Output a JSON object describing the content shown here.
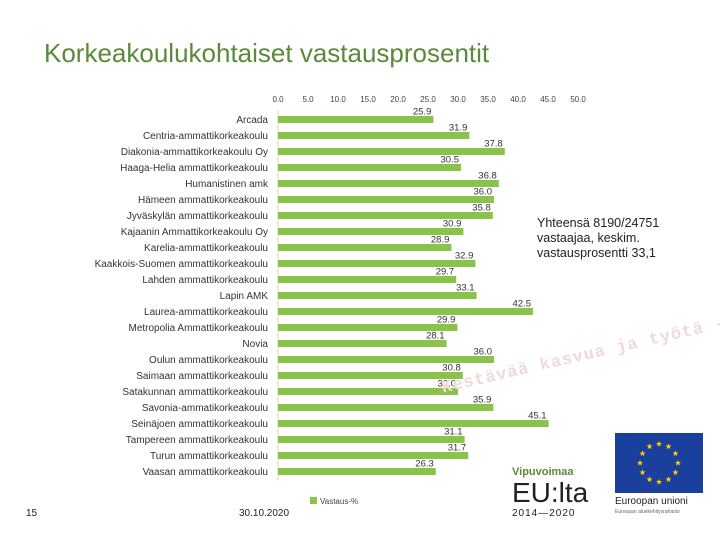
{
  "slide": {
    "title": "Korkeakoulukohtaiset vastausprosentit",
    "note": "Yhteensä 8190/24751 vastaajaa, keskim. vastausprosentti 33,1",
    "page_number": "15",
    "date": "30.10.2020",
    "watermark": "Kestävää kasvua ja työtä -ohjelma",
    "logo_top": "Vipuvoimaa",
    "logo_main": "EU:lta",
    "logo_years": "2014—2020",
    "eu_label": "Euroopan unioni",
    "eu_sublabel": "Euroopan aluekehitysrahasto",
    "colors": {
      "bar": "#8bc34a",
      "title": "#5a8a3a",
      "eu_blue": "#1b3f9c",
      "eu_star": "#ffd200"
    }
  },
  "chart_data": {
    "type": "bar",
    "orientation": "horizontal",
    "categories": [
      "Arcada",
      "Centria-ammattikorkeakoulu",
      "Diakonia-ammattikorkeakoulu Oy",
      "Haaga-Helia ammattikorkeakoulu",
      "Humanistinen amk",
      "Hämeen ammattikorkeakoulu",
      "Jyväskylän ammattikorkeakoulu",
      "Kajaanin Ammattikorkeakoulu Oy",
      "Karelia-ammattikorkeakoulu",
      "Kaakkois-Suomen ammattikorkeakoulu",
      "Lahden ammattikorkeakoulu",
      "Lapin AMK",
      "Laurea-ammattikorkeakoulu",
      "Metropolia Ammattikorkeakoulu",
      "Novia",
      "Oulun ammattikorkeakoulu",
      "Saimaan ammattikorkeakoulu",
      "Satakunnan ammattikorkeakoulu",
      "Savonia-ammatikorkeakoulu",
      "Seinäjoen ammattikorkeakoulu",
      "Tampereen ammattikorkeakoulu",
      "Turun ammattikorkeakoulu",
      "Vaasan ammattikorkeakoulu"
    ],
    "series": [
      {
        "name": "Vastaus-%",
        "values": [
          25.9,
          31.9,
          37.8,
          30.5,
          36.8,
          36.0,
          35.8,
          30.9,
          28.9,
          32.9,
          29.7,
          33.1,
          42.5,
          29.9,
          28.1,
          36.0,
          30.8,
          30.0,
          35.9,
          45.1,
          31.1,
          31.7,
          26.3
        ],
        "labels": [
          "25.9",
          "31.9",
          "37.8",
          "30.5",
          "36.8",
          "36.0",
          "35.8",
          "30.9",
          "28.9",
          "32.9",
          "29.7",
          "33.1",
          "42.5",
          "29.9",
          "28.1",
          "36.0",
          "30.8",
          "30.0",
          "35.9",
          "45.1",
          "31.1",
          "31.7",
          "26.3"
        ]
      }
    ],
    "xlim": [
      0,
      50
    ],
    "x_ticks": [
      0,
      5,
      10,
      15,
      20,
      25,
      30,
      35,
      40,
      45,
      50
    ],
    "x_tick_labels": [
      "0.0",
      "5.0",
      "10.0",
      "15.0",
      "20.0",
      "25.0",
      "30.0",
      "35.0",
      "40.0",
      "45.0",
      "50.0"
    ],
    "axis_position": "top",
    "grid": false,
    "legend": "bottom"
  }
}
